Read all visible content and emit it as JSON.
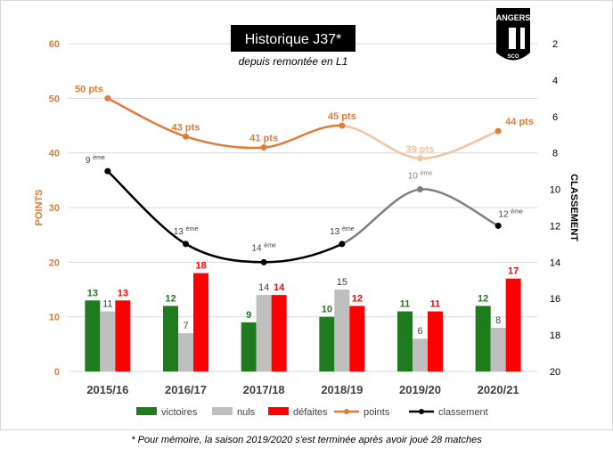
{
  "title": "Historique J37*",
  "subtitle": "depuis remontée en L1",
  "footnote": "*  Pour mémoire, la saison 2019/2020 s'est terminée après avoir joué 28 matches",
  "logo": {
    "name": "ANGERS",
    "sub": "SCO",
    "icon": "angers-sco-crest"
  },
  "colors": {
    "victoires": "#1e7b1e",
    "nuls": "#bfbfbf",
    "defaites": "#ff0000",
    "points": "#e07b39",
    "points_faded": "#f2c4a0",
    "classement": "#000000",
    "classement_faded": "#808080"
  },
  "chart_data": {
    "type": "bar",
    "categories": [
      "2015/16",
      "2016/17",
      "2017/18",
      "2018/19",
      "2019/20",
      "2020/21"
    ],
    "ylabel": "POINTS",
    "ylabel_right": "CLASSEMENT",
    "ylim": [
      0,
      60
    ],
    "yticks": [
      "0",
      "10",
      "20",
      "30",
      "40",
      "50",
      "60"
    ],
    "y2lim": [
      2,
      20
    ],
    "y2_inverted": true,
    "y2ticks": [
      "2",
      "4",
      "6",
      "8",
      "10",
      "12",
      "14",
      "16",
      "18",
      "20"
    ],
    "grid": "horizontal",
    "legend_position": "bottom",
    "series": [
      {
        "name": "victoires",
        "kind": "bar",
        "values": [
          13,
          12,
          9,
          10,
          11,
          12
        ],
        "labels": [
          "13",
          "12",
          "9",
          "10",
          "11",
          "12"
        ]
      },
      {
        "name": "nuls",
        "kind": "bar",
        "values": [
          11,
          7,
          14,
          15,
          6,
          8
        ],
        "labels": [
          "11",
          "7",
          "14",
          "15",
          "6",
          "8"
        ]
      },
      {
        "name": "défaites",
        "kind": "bar",
        "values": [
          13,
          18,
          14,
          12,
          11,
          17
        ],
        "labels": [
          "13",
          "18",
          "14",
          "12",
          "11",
          "17"
        ]
      },
      {
        "name": "points",
        "kind": "line",
        "values": [
          50,
          43,
          41,
          45,
          39,
          44
        ],
        "labels": [
          "50 pts",
          "43 pts",
          "41 pts",
          "45 pts",
          "39 pts",
          "44 pts"
        ]
      },
      {
        "name": "classement",
        "kind": "line",
        "axis": "right",
        "values": [
          9,
          13,
          14,
          13,
          10,
          12
        ],
        "labels": [
          "9",
          "13",
          "14",
          "13",
          "10",
          "12"
        ],
        "label_suffix": "ème"
      }
    ]
  }
}
